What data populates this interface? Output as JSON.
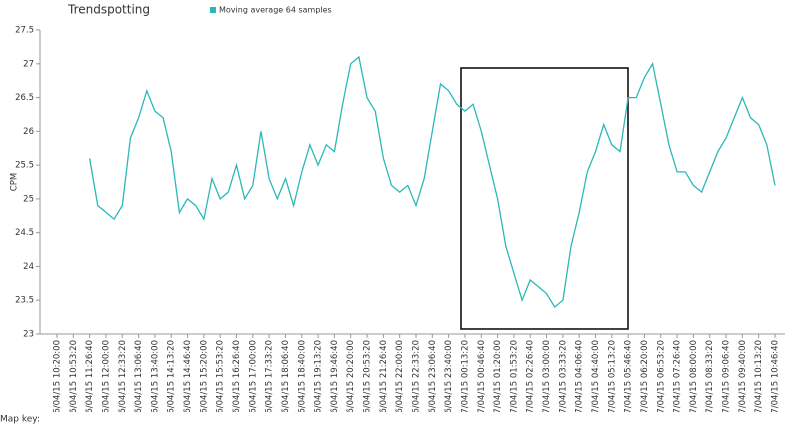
{
  "chart_data": {
    "type": "line",
    "title": "Trendspotting",
    "ylabel": "CPM",
    "footer": "Map key:",
    "categories": [
      "06/04/15 10:20:00",
      "06/04/15 10:53:20",
      "06/04/15 11:26:40",
      "06/04/15 12:00:00",
      "06/04/15 12:33:20",
      "06/04/15 13:06:40",
      "06/04/15 13:40:00",
      "06/04/15 14:13:20",
      "06/04/15 14:46:40",
      "06/04/15 15:20:00",
      "06/04/15 15:53:20",
      "06/04/15 16:26:40",
      "06/04/15 17:00:00",
      "06/04/15 17:33:20",
      "06/04/15 18:06:40",
      "06/04/15 18:40:00",
      "06/04/15 19:13:20",
      "06/04/15 19:46:40",
      "06/04/15 20:20:00",
      "06/04/15 20:53:20",
      "06/04/15 21:26:40",
      "06/04/15 22:00:00",
      "06/04/15 22:33:20",
      "06/04/15 23:06:40",
      "06/04/15 23:40:00",
      "07/04/15 00:13:20",
      "07/04/15 00:46:40",
      "07/04/15 01:20:00",
      "07/04/15 01:53:20",
      "07/04/15 02:26:40",
      "07/04/15 03:00:00",
      "07/04/15 03:33:20",
      "07/04/15 04:06:40",
      "07/04/15 04:40:00",
      "07/04/15 05:13:20",
      "07/04/15 05:46:40",
      "07/04/15 06:20:00",
      "07/04/15 06:53:20",
      "07/04/15 07:26:40",
      "07/04/15 08:00:00",
      "07/04/15 08:33:20",
      "07/04/15 09:06:40",
      "07/04/15 09:40:00",
      "07/04/15 10:13:20",
      "07/04/15 10:46:40"
    ],
    "x": [
      "06/04/15 11:26:40",
      "06/04/15 11:43:20",
      "06/04/15 12:00:00",
      "06/04/15 12:16:40",
      "06/04/15 12:33:20",
      "06/04/15 12:50:00",
      "06/04/15 13:06:40",
      "06/04/15 13:23:20",
      "06/04/15 13:40:00",
      "06/04/15 13:56:40",
      "06/04/15 14:13:20",
      "06/04/15 14:30:00",
      "06/04/15 14:46:40",
      "06/04/15 15:03:20",
      "06/04/15 15:20:00",
      "06/04/15 15:36:40",
      "06/04/15 15:53:20",
      "06/04/15 16:10:00",
      "06/04/15 16:26:40",
      "06/04/15 16:43:20",
      "06/04/15 17:00:00",
      "06/04/15 17:16:40",
      "06/04/15 17:33:20",
      "06/04/15 17:50:00",
      "06/04/15 18:06:40",
      "06/04/15 18:23:20",
      "06/04/15 18:40:00",
      "06/04/15 18:56:40",
      "06/04/15 19:13:20",
      "06/04/15 19:30:00",
      "06/04/15 19:46:40",
      "06/04/15 20:03:20",
      "06/04/15 20:20:00",
      "06/04/15 20:36:40",
      "06/04/15 20:53:20",
      "06/04/15 21:10:00",
      "06/04/15 21:26:40",
      "06/04/15 21:43:20",
      "06/04/15 22:00:00",
      "06/04/15 22:16:40",
      "06/04/15 22:33:20",
      "06/04/15 22:50:00",
      "06/04/15 23:06:40",
      "06/04/15 23:23:20",
      "06/04/15 23:40:00",
      "06/04/15 23:56:40",
      "07/04/15 00:13:20",
      "07/04/15 00:30:00",
      "07/04/15 00:46:40",
      "07/04/15 01:03:20",
      "07/04/15 01:20:00",
      "07/04/15 01:36:40",
      "07/04/15 01:53:20",
      "07/04/15 02:10:00",
      "07/04/15 02:26:40",
      "07/04/15 02:43:20",
      "07/04/15 03:00:00",
      "07/04/15 03:16:40",
      "07/04/15 03:33:20",
      "07/04/15 03:50:00",
      "07/04/15 04:06:40",
      "07/04/15 04:23:20",
      "07/04/15 04:40:00",
      "07/04/15 04:56:40",
      "07/04/15 05:13:20",
      "07/04/15 05:30:00",
      "07/04/15 05:46:40",
      "07/04/15 06:03:20",
      "07/04/15 06:20:00",
      "07/04/15 06:36:40",
      "07/04/15 06:53:20",
      "07/04/15 07:10:00",
      "07/04/15 07:26:40",
      "07/04/15 07:43:20",
      "07/04/15 08:00:00",
      "07/04/15 08:16:40",
      "07/04/15 08:33:20",
      "07/04/15 08:50:00",
      "07/04/15 09:06:40",
      "07/04/15 09:23:20",
      "07/04/15 09:40:00",
      "07/04/15 09:56:40",
      "07/04/15 10:13:20",
      "07/04/15 10:30:00",
      "07/04/15 10:46:40"
    ],
    "series": [
      {
        "name": "Moving average 64 samples",
        "color": "#2bb8b8",
        "values": [
          25.6,
          24.9,
          24.8,
          24.7,
          24.9,
          25.9,
          26.2,
          26.6,
          26.3,
          26.2,
          25.7,
          24.8,
          25.0,
          24.9,
          24.7,
          25.3,
          25.0,
          25.1,
          25.5,
          25.0,
          25.2,
          26.0,
          25.3,
          25.0,
          25.3,
          24.9,
          25.4,
          25.8,
          25.5,
          25.8,
          25.7,
          26.4,
          27.0,
          27.1,
          26.5,
          26.3,
          25.6,
          25.2,
          25.1,
          25.2,
          24.9,
          25.3,
          26.0,
          26.7,
          26.6,
          26.4,
          26.3,
          26.4,
          26.0,
          25.5,
          25.0,
          24.3,
          23.9,
          23.5,
          23.8,
          23.7,
          23.6,
          23.4,
          23.5,
          24.3,
          24.8,
          25.4,
          25.7,
          26.1,
          25.8,
          25.7,
          26.5,
          26.5,
          26.8,
          27.0,
          26.4,
          25.8,
          25.4,
          25.4,
          25.2,
          25.1,
          25.4,
          25.7,
          25.9,
          26.2,
          26.5,
          26.2,
          26.1,
          25.8,
          25.2
        ]
      }
    ],
    "ylim": [
      23,
      27.5
    ],
    "yticks": [
      23,
      23.5,
      24,
      24.5,
      25,
      25.5,
      26,
      26.5,
      27,
      27.5
    ]
  }
}
